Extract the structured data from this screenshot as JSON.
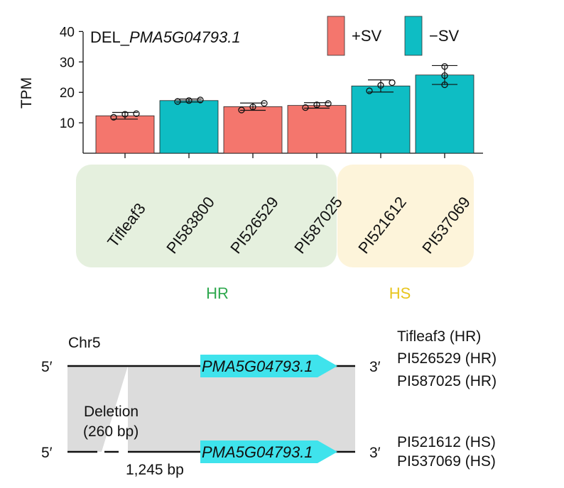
{
  "chart_data": {
    "type": "bar",
    "title_prefix": "DEL_",
    "title_gene": "PMA5G04793.1",
    "ylabel": "TPM",
    "xlabel": "",
    "ylim": [
      0,
      40
    ],
    "yticks": [
      10,
      20,
      30,
      40
    ],
    "grid": false,
    "legend_position": "top-right",
    "legend": [
      {
        "label": "+SV",
        "color": "#F4766D"
      },
      {
        "label": "−SV",
        "color": "#0EBDC4"
      }
    ],
    "categories": [
      "Tifleaf3",
      "PI583800",
      "PI526529",
      "PI587025",
      "PI521612",
      "PI537069"
    ],
    "values": [
      12.3,
      17.3,
      15.3,
      15.7,
      22.1,
      25.7
    ],
    "error": [
      1.1,
      0.5,
      1.2,
      0.9,
      2.0,
      3.1
    ],
    "points": [
      [
        11.8,
        12.8,
        13.0
      ],
      [
        17.0,
        17.3,
        17.5
      ],
      [
        14.2,
        15.2,
        16.4
      ],
      [
        15.0,
        15.9,
        16.3
      ],
      [
        20.5,
        22.3,
        23.2
      ],
      [
        22.5,
        25.5,
        28.5
      ]
    ],
    "sv_status": [
      "+SV",
      "−SV",
      "+SV",
      "+SV",
      "−SV",
      "−SV"
    ],
    "colors": {
      "plus_sv": "#F4766D",
      "minus_sv": "#0EBDC4",
      "hr_bg": "#E5F0DE",
      "hs_bg": "#FDF4DA",
      "hr_text": "#2EA84E",
      "hs_text": "#E8C51E"
    },
    "groups": [
      {
        "label": "HR",
        "members": [
          "Tifleaf3",
          "PI583800",
          "PI526529",
          "PI587025"
        ]
      },
      {
        "label": "HS",
        "members": [
          "PI521612",
          "PI537069"
        ]
      }
    ]
  },
  "diagram": {
    "chromosome": "Chr5",
    "five_prime": "5′",
    "three_prime": "3′",
    "gene": "PMA5G04793.1",
    "deletion_line1": "Deletion",
    "deletion_line2": "(260 bp)",
    "distance": "1,245 bp",
    "top_accessions": [
      "Tifleaf3 (HR)",
      "PI526529 (HR)",
      "PI587025 (HR)"
    ],
    "bottom_accessions": [
      "PI521612 (HS)",
      "PI537069 (HS)"
    ],
    "colors": {
      "gene_arrow": "#3FE3EC",
      "shade": "#DCDCDC"
    }
  }
}
